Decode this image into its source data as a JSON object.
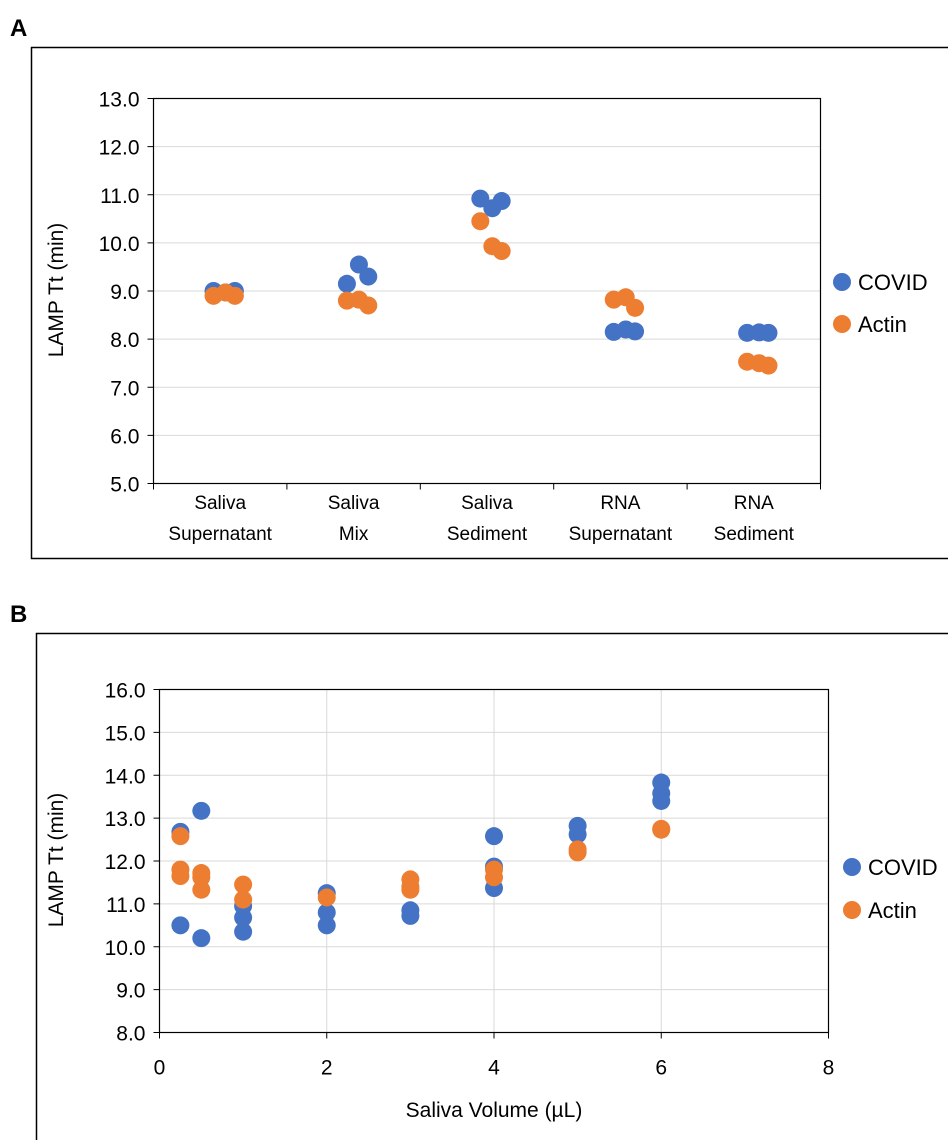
{
  "panels": [
    {
      "letter": "A",
      "chart_data": {
        "type": "scatter",
        "ylabel": "LAMP Tt (min)",
        "xlabel": "",
        "ylim": [
          5.0,
          13.0
        ],
        "yticks": [
          "5.0",
          "6.0",
          "7.0",
          "8.0",
          "9.0",
          "10.0",
          "11.0",
          "12.0",
          "13.0"
        ],
        "categories": [
          [
            "Saliva",
            "Supernatant"
          ],
          [
            "Saliva",
            "Mix"
          ],
          [
            "Saliva",
            "Sediment"
          ],
          [
            "RNA",
            "Supernatant"
          ],
          [
            "RNA",
            "Sediment"
          ]
        ],
        "grid": "horizontal",
        "legend_position": "right",
        "series": [
          {
            "name": "COVID",
            "color": "#4472C4",
            "points": [
              {
                "cat": 0,
                "off": -0.05,
                "y": 9.0
              },
              {
                "cat": 0,
                "off": 0.04,
                "y": 8.97
              },
              {
                "cat": 0,
                "off": 0.11,
                "y": 9.0
              },
              {
                "cat": 1,
                "off": -0.05,
                "y": 9.15
              },
              {
                "cat": 1,
                "off": 0.04,
                "y": 9.55
              },
              {
                "cat": 1,
                "off": 0.11,
                "y": 9.3
              },
              {
                "cat": 2,
                "off": -0.05,
                "y": 10.92
              },
              {
                "cat": 2,
                "off": 0.04,
                "y": 10.72
              },
              {
                "cat": 2,
                "off": 0.11,
                "y": 10.87
              },
              {
                "cat": 3,
                "off": -0.05,
                "y": 8.15
              },
              {
                "cat": 3,
                "off": 0.04,
                "y": 8.2
              },
              {
                "cat": 3,
                "off": 0.11,
                "y": 8.16
              },
              {
                "cat": 4,
                "off": -0.05,
                "y": 8.13
              },
              {
                "cat": 4,
                "off": 0.04,
                "y": 8.14
              },
              {
                "cat": 4,
                "off": 0.11,
                "y": 8.13
              }
            ]
          },
          {
            "name": "Actin",
            "color": "#ED7D31",
            "points": [
              {
                "cat": 0,
                "off": -0.05,
                "y": 8.9
              },
              {
                "cat": 0,
                "off": 0.04,
                "y": 8.97
              },
              {
                "cat": 0,
                "off": 0.11,
                "y": 8.9
              },
              {
                "cat": 1,
                "off": -0.05,
                "y": 8.8
              },
              {
                "cat": 1,
                "off": 0.04,
                "y": 8.82
              },
              {
                "cat": 1,
                "off": 0.11,
                "y": 8.7
              },
              {
                "cat": 2,
                "off": -0.05,
                "y": 10.45
              },
              {
                "cat": 2,
                "off": 0.04,
                "y": 9.93
              },
              {
                "cat": 2,
                "off": 0.11,
                "y": 9.83
              },
              {
                "cat": 3,
                "off": -0.05,
                "y": 8.82
              },
              {
                "cat": 3,
                "off": 0.04,
                "y": 8.87
              },
              {
                "cat": 3,
                "off": 0.11,
                "y": 8.65
              },
              {
                "cat": 4,
                "off": -0.05,
                "y": 7.53
              },
              {
                "cat": 4,
                "off": 0.04,
                "y": 7.5
              },
              {
                "cat": 4,
                "off": 0.11,
                "y": 7.45
              }
            ]
          }
        ]
      }
    },
    {
      "letter": "B",
      "chart_data": {
        "type": "scatter",
        "ylabel": "LAMP Tt (min)",
        "xlabel": "Saliva Volume (µL)",
        "xlim": [
          0,
          8
        ],
        "ylim": [
          8.0,
          16.0
        ],
        "xticks": [
          "0",
          "2",
          "4",
          "6",
          "8"
        ],
        "yticks": [
          "8.0",
          "9.0",
          "10.0",
          "11.0",
          "12.0",
          "13.0",
          "14.0",
          "15.0",
          "16.0"
        ],
        "grid": "both",
        "legend_position": "right",
        "series": [
          {
            "name": "COVID",
            "color": "#4472C4",
            "x": [
              0.25,
              0.25,
              0.5,
              0.5,
              1,
              1,
              1,
              2,
              2,
              2,
              3,
              3,
              4,
              4,
              4,
              5,
              5,
              6,
              6,
              6
            ],
            "y": [
              12.68,
              10.5,
              13.17,
              10.2,
              10.95,
              10.68,
              10.35,
              11.25,
              10.8,
              10.5,
              10.85,
              10.72,
              12.58,
              11.87,
              11.37,
              12.82,
              12.62,
              13.83,
              13.58,
              13.4
            ]
          },
          {
            "name": "Actin",
            "color": "#ED7D31",
            "x": [
              0.25,
              0.25,
              0.25,
              0.5,
              0.5,
              0.5,
              1,
              1,
              2,
              3,
              3,
              3,
              4,
              4,
              5,
              5,
              6,
              6
            ],
            "y": [
              12.58,
              11.8,
              11.65,
              11.72,
              11.62,
              11.33,
              11.45,
              11.1,
              11.15,
              11.57,
              11.4,
              11.33,
              11.8,
              11.62,
              12.27,
              12.2,
              12.75,
              12.73
            ]
          }
        ]
      }
    }
  ]
}
